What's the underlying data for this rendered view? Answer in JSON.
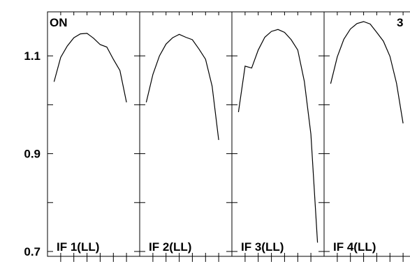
{
  "chart_data": {
    "type": "line",
    "corner_left": "ON",
    "corner_right": "3",
    "ylim": [
      0.69,
      1.19
    ],
    "yticks": [
      0.7,
      0.9,
      1.1
    ],
    "ytick_labels": [
      "0.7",
      "0.9",
      "1.1"
    ],
    "ytick_minor": [
      0.7,
      0.8,
      0.9,
      1.0,
      1.1
    ],
    "panels": [
      {
        "label": "IF 1(LL)",
        "xlim": [
          0,
          14
        ],
        "x": [
          1,
          2,
          3,
          4,
          5,
          6,
          7,
          8,
          9,
          10,
          11,
          12
        ],
        "y": [
          1.047,
          1.097,
          1.12,
          1.137,
          1.145,
          1.146,
          1.136,
          1.123,
          1.118,
          1.093,
          1.07,
          1.005
        ]
      },
      {
        "label": "IF 2(LL)",
        "xlim": [
          0,
          14
        ],
        "x": [
          1,
          2,
          3,
          4,
          5,
          6,
          7,
          8,
          9,
          10,
          11,
          12
        ],
        "y": [
          1.005,
          1.062,
          1.1,
          1.124,
          1.137,
          1.144,
          1.138,
          1.133,
          1.114,
          1.093,
          1.038,
          0.928
        ]
      },
      {
        "label": "IF 3(LL)",
        "xlim": [
          0,
          14
        ],
        "x": [
          1,
          2,
          3,
          4,
          5,
          6,
          7,
          8,
          9,
          10,
          11,
          12,
          13
        ],
        "y": [
          0.985,
          1.079,
          1.075,
          1.112,
          1.138,
          1.15,
          1.154,
          1.148,
          1.133,
          1.112,
          1.048,
          0.94,
          0.718
        ]
      },
      {
        "label": "IF 4(LL)",
        "xlim": [
          0,
          14
        ],
        "x": [
          1,
          2,
          3,
          4,
          5,
          6,
          7,
          8,
          9,
          10,
          11,
          12
        ],
        "y": [
          1.043,
          1.098,
          1.134,
          1.155,
          1.166,
          1.17,
          1.165,
          1.148,
          1.13,
          1.099,
          1.044,
          0.962
        ]
      }
    ]
  }
}
